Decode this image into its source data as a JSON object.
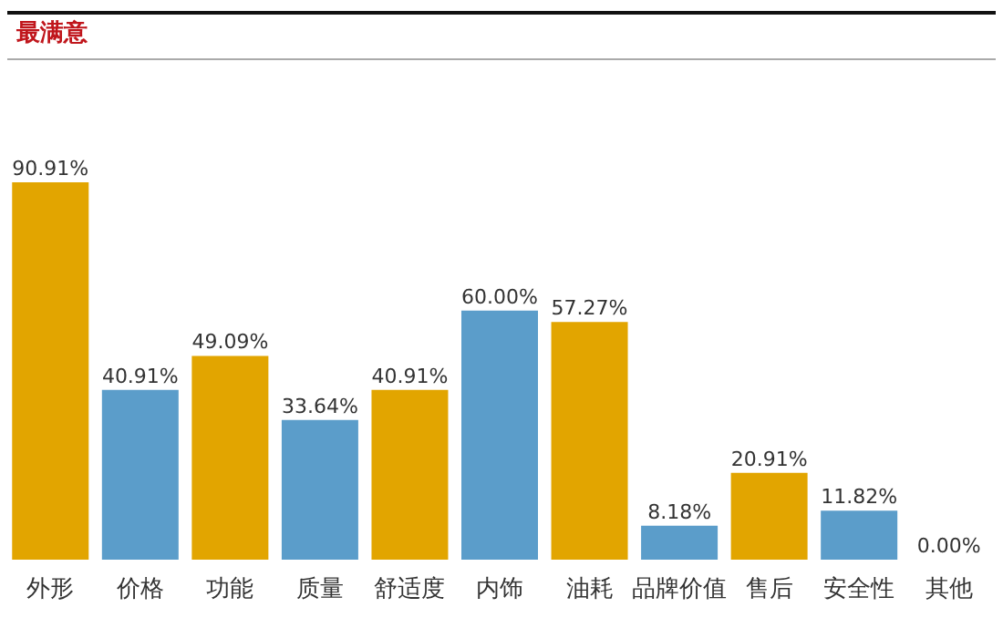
{
  "chart_data": {
    "type": "bar",
    "title": "最满意",
    "categories": [
      "外形",
      "价格",
      "功能",
      "质量",
      "舒适度",
      "内饰",
      "油耗",
      "品牌价值",
      "售后",
      "安全性",
      "其他"
    ],
    "values": [
      90.91,
      40.91,
      49.09,
      33.64,
      40.91,
      60.0,
      57.27,
      8.18,
      20.91,
      11.82,
      0.0
    ],
    "colors": [
      "#e2a500",
      "#5b9dca",
      "#e2a500",
      "#5b9dca",
      "#e2a500",
      "#5b9dca",
      "#e2a500",
      "#5b9dca",
      "#e2a500",
      "#5b9dca",
      "#e2a500"
    ],
    "value_labels": [
      "90.91%",
      "40.91%",
      "49.09%",
      "33.64%",
      "40.91%",
      "60.00%",
      "57.27%",
      "8.18%",
      "20.91%",
      "11.82%",
      "0.00%"
    ],
    "data_labels": false
  }
}
